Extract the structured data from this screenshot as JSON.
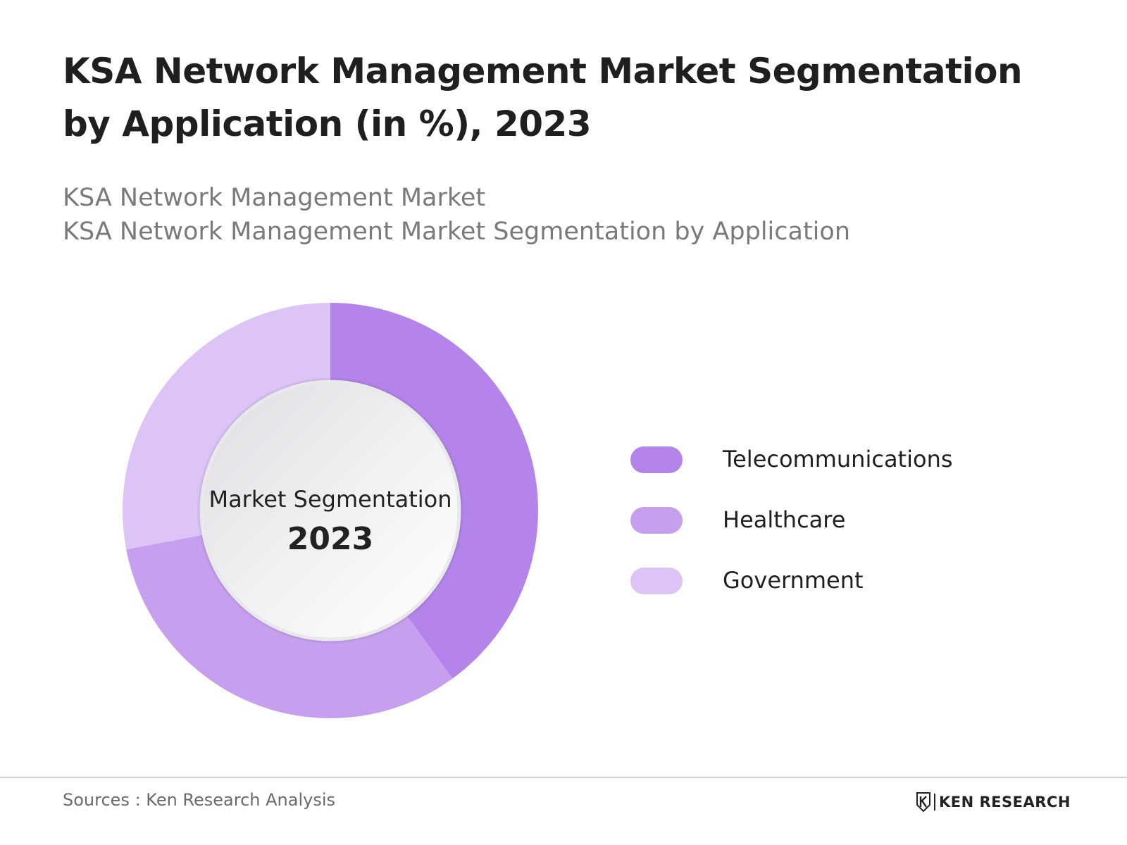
{
  "title": "KSA Network Management Market Segmentation by Application (in %), 2023",
  "subtitles": [
    "KSA Network Management Market",
    "KSA Network Management Market Segmentation by Application"
  ],
  "chart_data": {
    "type": "pie",
    "style": "donut",
    "center_label": "Market Segmentation",
    "center_value": "2023",
    "legend_position": "right",
    "categories": [
      "Telecommunications",
      "Healthcare",
      "Government"
    ],
    "values": [
      40,
      32,
      28
    ],
    "colors": [
      "#b584eb",
      "#c79fef",
      "#dcc4f7"
    ]
  },
  "footer": {
    "source": "Sources : Ken Research Analysis",
    "brand": "KEN RESEARCH"
  }
}
